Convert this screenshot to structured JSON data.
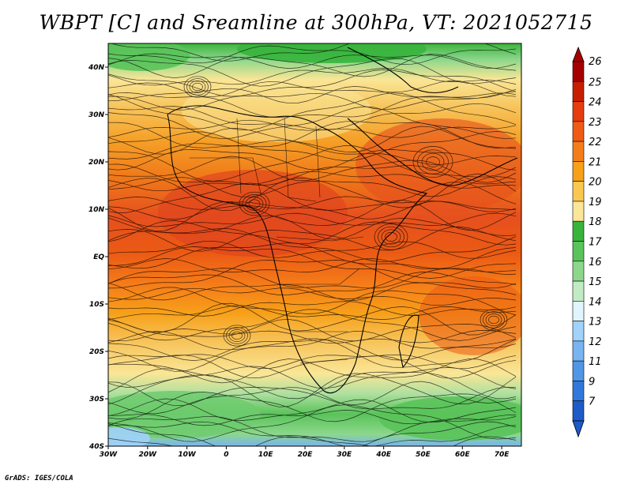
{
  "title": "WBPT [C] and Sreamline at 300hPa, VT: 2021052715",
  "credit": "GrADS: IGES/COLA",
  "map": {
    "lon_range": [
      -30,
      75
    ],
    "lat_range": [
      -40,
      45
    ],
    "lat_ticks": [
      "40N",
      "30N",
      "20N",
      "10N",
      "EQ",
      "10S",
      "20S",
      "30S",
      "40S"
    ],
    "lon_ticks": [
      "30W",
      "20W",
      "10W",
      "0",
      "10E",
      "20E",
      "30E",
      "40E",
      "50E",
      "60E",
      "70E"
    ],
    "field": "wet-bulb potential temperature with streamlines"
  },
  "colorbar": {
    "labels": [
      "26",
      "25",
      "24",
      "23",
      "22",
      "21",
      "20",
      "19",
      "18",
      "17",
      "16",
      "15",
      "14",
      "13",
      "12",
      "11",
      "9",
      "7"
    ],
    "colors": [
      "#a50000",
      "#c81e00",
      "#e63c0f",
      "#f05a14",
      "#f57d19",
      "#f7a019",
      "#fac850",
      "#fae696",
      "#37b43c",
      "#5ac35a",
      "#8cd78c",
      "#c3ebc3",
      "#e1f5ff",
      "#a0d2fa",
      "#78b4f0",
      "#5096e6",
      "#3278dc",
      "#1e5ac8"
    ]
  }
}
